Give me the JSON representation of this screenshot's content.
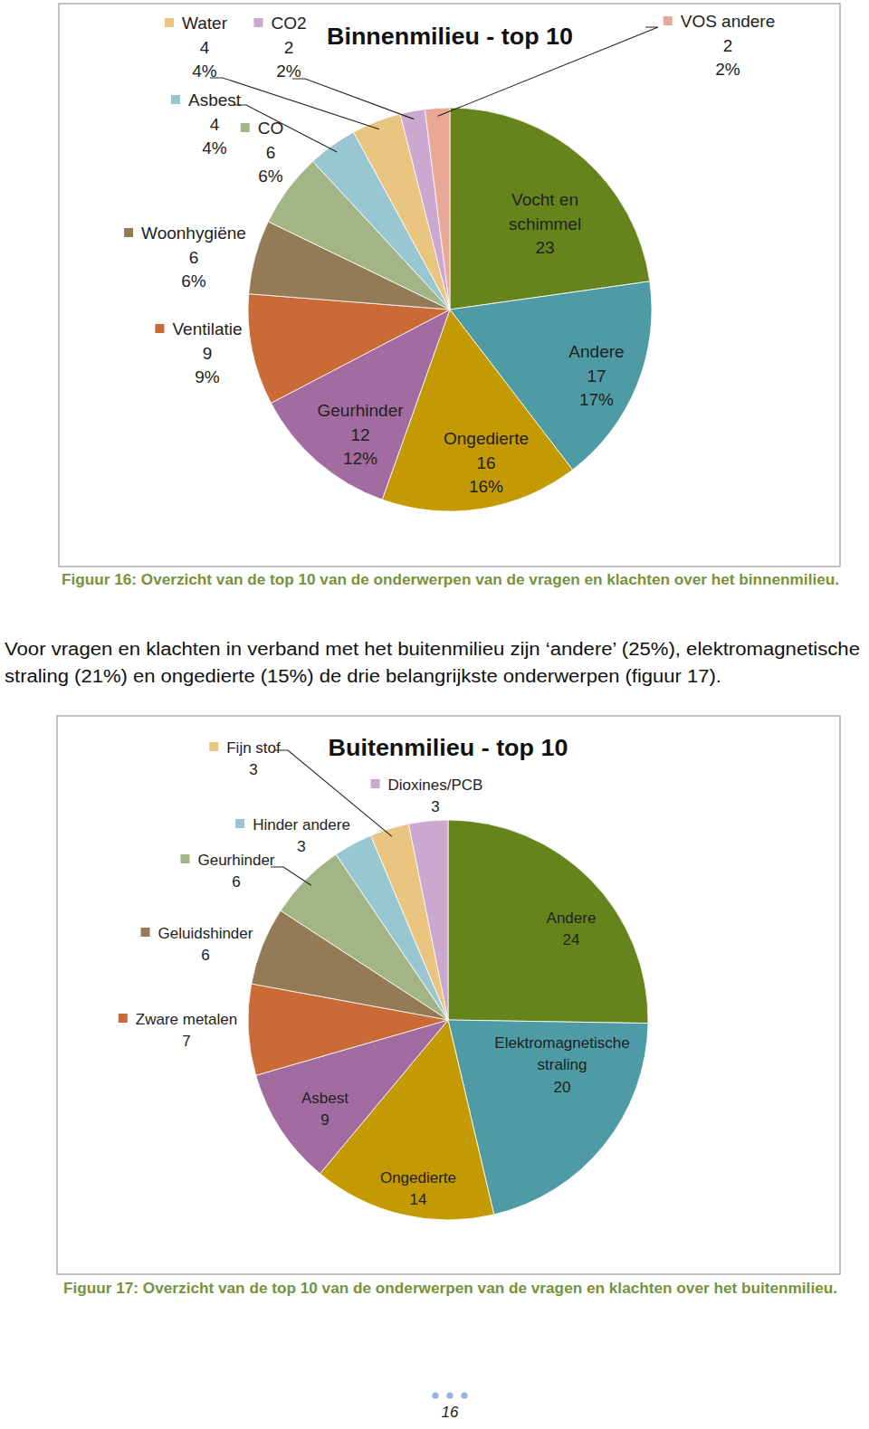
{
  "chart_data": [
    {
      "type": "pie",
      "title": "Binnenmilieu - top 10",
      "categories": [
        "Vocht en schimmel",
        "Andere",
        "Ongedierte",
        "Geurhinder",
        "Ventilatie",
        "Woonhygiëne",
        "CO",
        "Asbest",
        "Water",
        "CO2",
        "VOS andere"
      ],
      "values": [
        23,
        17,
        16,
        12,
        9,
        6,
        6,
        4,
        4,
        2,
        2
      ],
      "percent_labels": [
        null,
        "17%",
        "16%",
        "12%",
        "9%",
        "6%",
        "6%",
        "4%",
        "4%",
        "2%",
        "2%"
      ],
      "colors": [
        "#66841c",
        "#4e9ba6",
        "#c49a02",
        "#a26ca0",
        "#c96a37",
        "#957a56",
        "#a3b587",
        "#98c7d1",
        "#e9c57f",
        "#cca7d0",
        "#e9a797"
      ],
      "data_labels": true,
      "caption": "Figuur 16: Overzicht van de top 10 van de onderwerpen van de vragen en klachten over het binnenmilieu."
    },
    {
      "type": "pie",
      "title": "Buitenmilieu - top 10",
      "categories": [
        "Andere",
        "Elektromagnetische straling",
        "Ongedierte",
        "Asbest",
        "Zware metalen",
        "Geluidshinder",
        "Geurhinder",
        "Hinder andere",
        "Fijn stof",
        "Dioxines/PCB"
      ],
      "values": [
        24,
        20,
        14,
        9,
        7,
        6,
        6,
        3,
        3,
        3
      ],
      "colors": [
        "#66841c",
        "#4e9ba6",
        "#c49a02",
        "#a26ca0",
        "#c96a37",
        "#957a56",
        "#a3b587",
        "#98c7d1",
        "#e9c57f",
        "#cca7d0"
      ],
      "data_labels": true,
      "caption": "Figuur 17: Overzicht van de top 10 van de onderwerpen van de vragen en klachten over het buitenmilieu."
    }
  ],
  "paragraph": [
    "Voor vragen en klachten in verband met het buitenmilieu zijn ‘andere’ (25%), elektromagnetische",
    "straling (21%) en ongedierte (15%) de drie belangrijkste onderwerpen (figuur 17)."
  ],
  "page_number": 16
}
